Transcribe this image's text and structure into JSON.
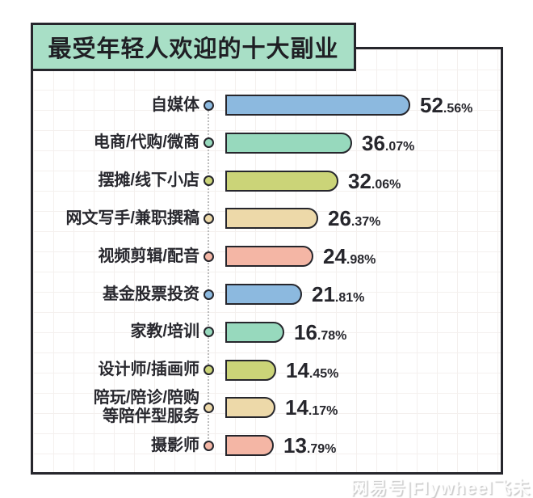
{
  "chart_data": {
    "type": "bar",
    "orientation": "horizontal",
    "title": "最受年轻人欢迎的十大副业",
    "unit": "%",
    "grid": true,
    "xlim": [
      0,
      60
    ],
    "categories": [
      "自媒体",
      "电商/代购/微商",
      "摆摊/线下小店",
      "网文写手/兼职撰稿",
      "视频剪辑/配音",
      "基金股票投资",
      "家教/培训",
      "设计师/插画师",
      "陪玩/陪诊/陪购等陪伴型服务",
      "摄影师"
    ],
    "values": [
      52.56,
      36.07,
      32.06,
      26.37,
      24.98,
      21.81,
      16.78,
      14.45,
      14.17,
      13.79
    ],
    "palette": {
      "blue": "#8cb9df",
      "teal": "#97d9bd",
      "yellow_green": "#cbd478",
      "cream": "#edd9a9",
      "pink": "#f4b6a5",
      "ink": "#26262c",
      "title_bg": "#a8dfc6"
    },
    "rows": [
      {
        "label": "自媒体",
        "value": 52.56,
        "value_int": "52",
        "value_frac": ".56%",
        "color": "#8cb9df"
      },
      {
        "label": "电商/代购/微商",
        "value": 36.07,
        "value_int": "36",
        "value_frac": ".07%",
        "color": "#97d9bd"
      },
      {
        "label": "摆摊/线下小店",
        "value": 32.06,
        "value_int": "32",
        "value_frac": ".06%",
        "color": "#cbd478"
      },
      {
        "label": "网文写手/兼职撰稿",
        "value": 26.37,
        "value_int": "26",
        "value_frac": ".37%",
        "color": "#edd9a9"
      },
      {
        "label": "视频剪辑/配音",
        "value": 24.98,
        "value_int": "24",
        "value_frac": ".98%",
        "color": "#f4b6a5"
      },
      {
        "label": "基金股票投资",
        "value": 21.81,
        "value_int": "21",
        "value_frac": ".81%",
        "color": "#8cb9df"
      },
      {
        "label": "家教/培训",
        "value": 16.78,
        "value_int": "16",
        "value_frac": ".78%",
        "color": "#97d9bd"
      },
      {
        "label": "设计师/插画师",
        "value": 14.45,
        "value_int": "14",
        "value_frac": ".45%",
        "color": "#cbd478"
      },
      {
        "label": "陪玩/陪诊/陪购\n等陪伴型服务",
        "value": 14.17,
        "value_int": "14",
        "value_frac": ".17%",
        "color": "#edd9a9"
      },
      {
        "label": "摄影师",
        "value": 13.79,
        "value_int": "13",
        "value_frac": ".79%",
        "color": "#f4b6a5"
      }
    ]
  },
  "watermark": {
    "text": "网易号|Flywheel飞未"
  }
}
